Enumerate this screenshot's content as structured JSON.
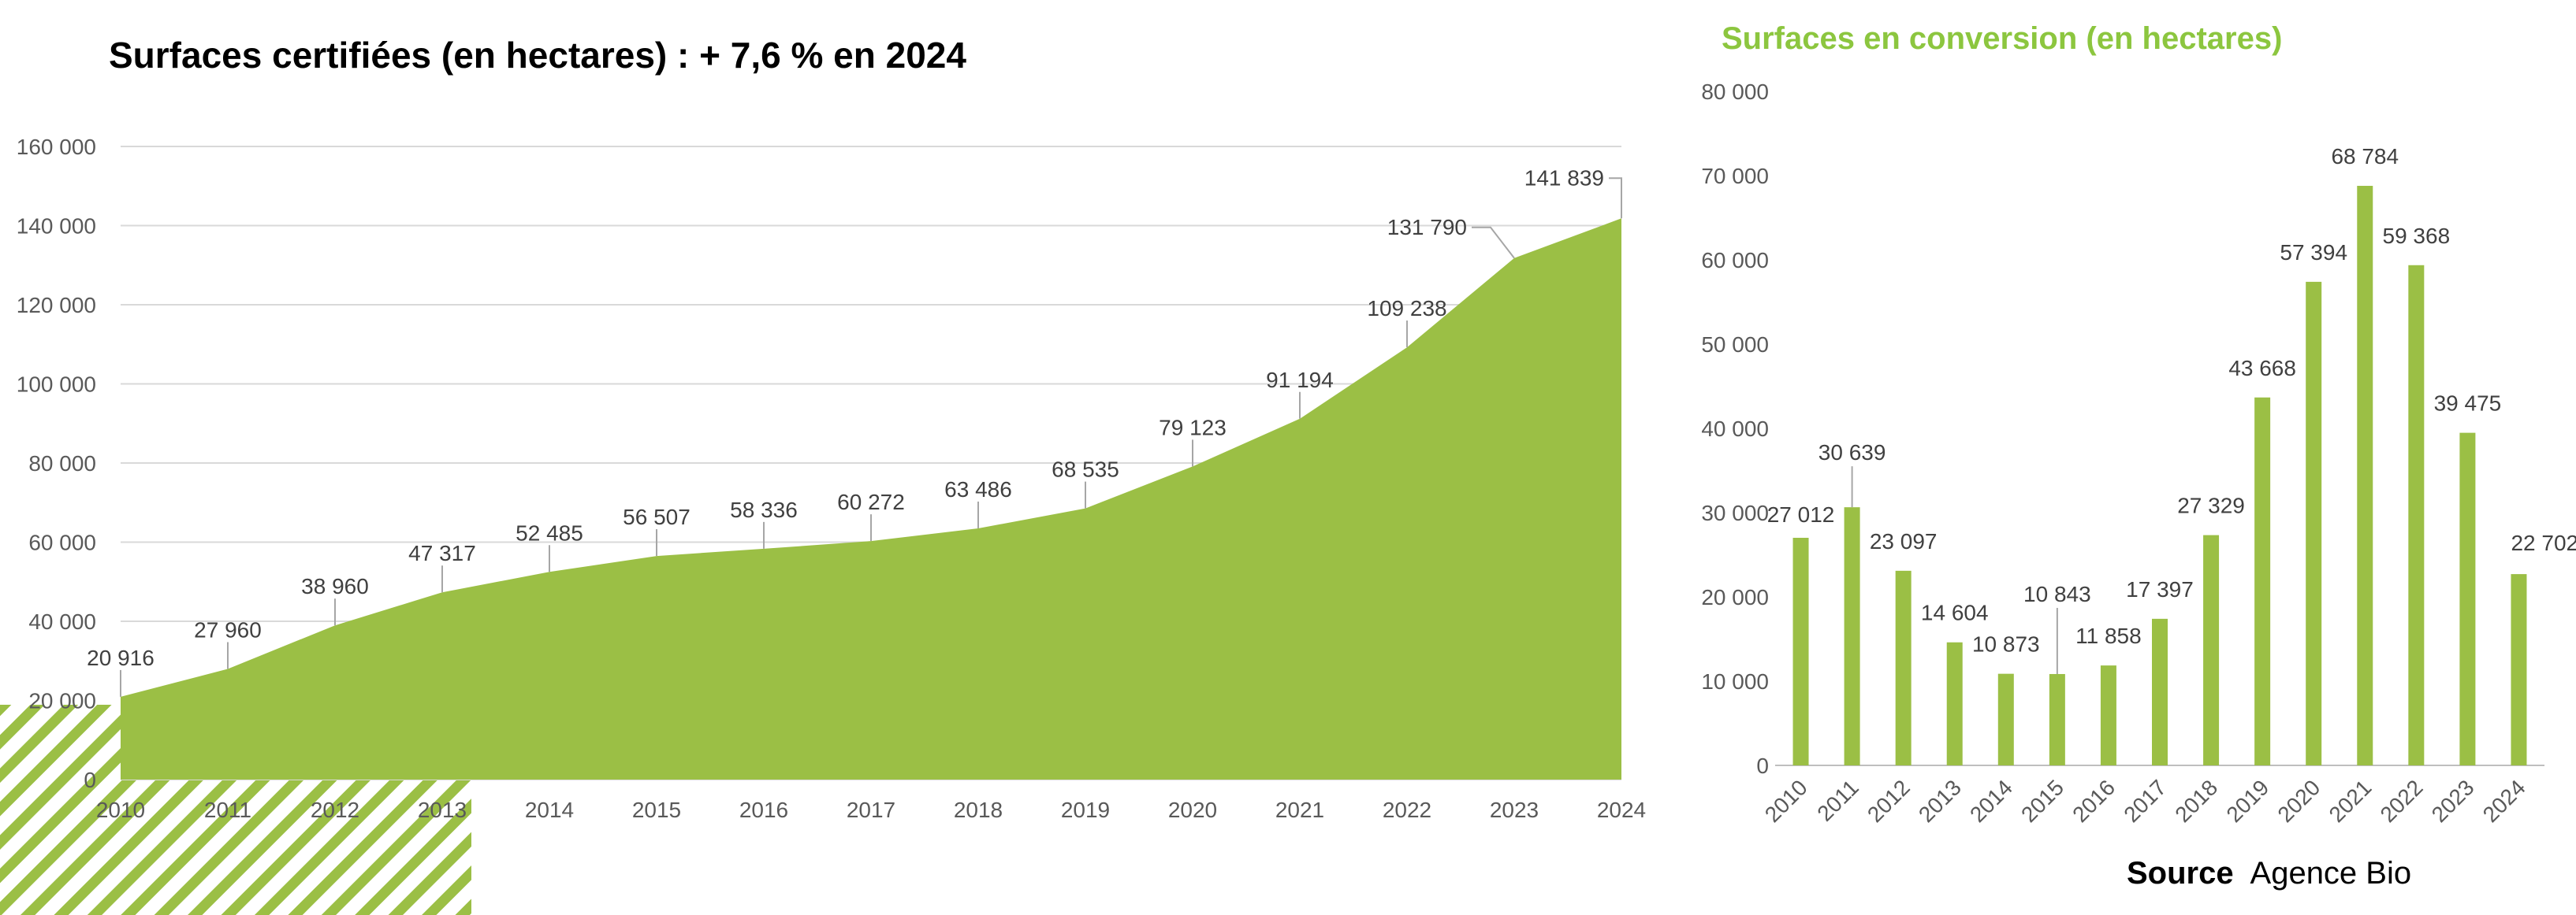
{
  "colors": {
    "green": "#9bbf45",
    "title_right": "#8cc63f",
    "grid": "#d9d9d9"
  },
  "source": {
    "label": "Source",
    "name": "Agence Bio"
  },
  "chart_data": [
    {
      "type": "area",
      "title": "Surfaces certifiées (en hectares) : + 7,6 % en 2024",
      "x": [
        "2010",
        "2011",
        "2012",
        "2013",
        "2014",
        "2015",
        "2016",
        "2017",
        "2018",
        "2019",
        "2020",
        "2021",
        "2022",
        "2023",
        "2024"
      ],
      "values": [
        20916,
        27960,
        38960,
        47317,
        52485,
        56507,
        58336,
        60272,
        63486,
        68535,
        79123,
        91194,
        109238,
        131790,
        141839
      ],
      "labels": [
        "20 916",
        "27 960",
        "38 960",
        "47 317",
        "52 485",
        "56 507",
        "58 336",
        "60 272",
        "63 486",
        "68 535",
        "79 123",
        "91 194",
        "109 238",
        "131 790",
        "141 839"
      ],
      "yticks": [
        "0",
        "20 000",
        "40 000",
        "60 000",
        "80 000",
        "100 000",
        "120 000",
        "140 000",
        "160 000"
      ],
      "ylim": [
        0,
        160000
      ],
      "grid": true
    },
    {
      "type": "bar",
      "title": "Surfaces en conversion (en hectares)",
      "categories": [
        "2010",
        "2011",
        "2012",
        "2013",
        "2014",
        "2015",
        "2016",
        "2017",
        "2018",
        "2019",
        "2020",
        "2021",
        "2022",
        "2023",
        "2024"
      ],
      "values": [
        27012,
        30639,
        23097,
        14604,
        10873,
        10843,
        11858,
        17397,
        27329,
        43668,
        57394,
        68784,
        59368,
        39475,
        22702
      ],
      "labels": [
        "27 012",
        "30 639",
        "23 097",
        "14 604",
        "10 873",
        "10 843",
        "11 858",
        "17 397",
        "27 329",
        "43 668",
        "57 394",
        "68 784",
        "59 368",
        "39 475",
        "22 702"
      ],
      "yticks": [
        "0",
        "10 000",
        "20 000",
        "30 000",
        "40 000",
        "50 000",
        "60 000",
        "70 000",
        "80 000"
      ],
      "ylim": [
        0,
        80000
      ],
      "grid": false
    }
  ]
}
